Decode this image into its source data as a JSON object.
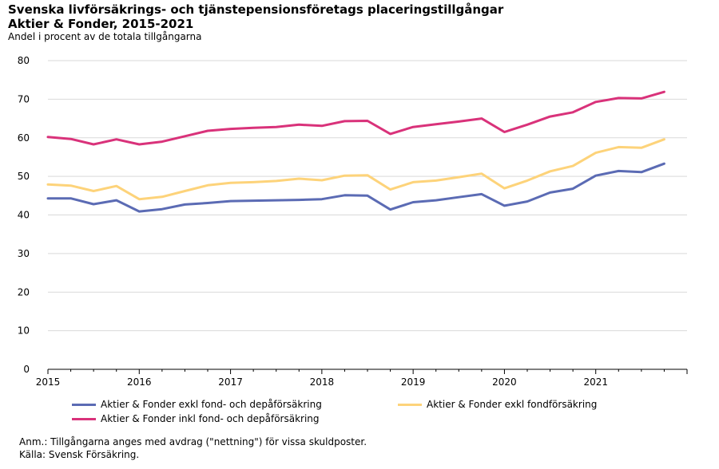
{
  "title_line1": "Svenska livförsäkrings- och tjänstepensionsföretags placeringstillgångar",
  "title_line2": "Aktier & Fonder, 2015-2021",
  "subtitle": "Andel i procent av de totala tillgångarna",
  "notes": {
    "anm": "Anm.: Tillgångarna anges med avdrag (\"nettning\") för vissa skuldposter.",
    "source": "Källa: Svensk Försäkring."
  },
  "chart_data": {
    "type": "line",
    "title": "",
    "xlabel": "",
    "ylabel": "",
    "ylim": [
      0,
      80
    ],
    "yticks": [
      0,
      10,
      20,
      30,
      40,
      50,
      60,
      70,
      80
    ],
    "xlim": [
      2015.0,
      2022.0
    ],
    "xticks": [
      "2015",
      "2016",
      "2017",
      "2018",
      "2019",
      "2020",
      "2021"
    ],
    "grid": true,
    "legend_position": "bottom",
    "x": [
      2015.0,
      2015.25,
      2015.5,
      2015.75,
      2016.0,
      2016.25,
      2016.5,
      2016.75,
      2017.0,
      2017.25,
      2017.5,
      2017.75,
      2018.0,
      2018.25,
      2018.5,
      2018.75,
      2019.0,
      2019.25,
      2019.5,
      2019.75,
      2020.0,
      2020.25,
      2020.5,
      2020.75,
      2021.0,
      2021.25,
      2021.5,
      2021.75
    ],
    "series": [
      {
        "name": "Aktier & Fonder exkl fond- och depåförsäkring",
        "color": "#5b6bb4",
        "values": [
          44.3,
          44.3,
          42.8,
          43.8,
          40.9,
          41.5,
          42.7,
          43.1,
          43.6,
          43.7,
          43.8,
          43.9,
          44.1,
          45.1,
          45.0,
          41.4,
          43.3,
          43.8,
          44.6,
          45.4,
          42.4,
          43.5,
          45.8,
          46.8,
          50.2,
          51.4,
          51.1,
          53.3
        ]
      },
      {
        "name": "Aktier & Fonder exkl fondförsäkring",
        "color": "#fdd37a",
        "values": [
          47.9,
          47.6,
          46.2,
          47.5,
          44.1,
          44.7,
          46.2,
          47.7,
          48.3,
          48.5,
          48.8,
          49.4,
          49.0,
          50.2,
          50.3,
          46.6,
          48.5,
          48.9,
          49.8,
          50.7,
          46.9,
          48.9,
          51.3,
          52.7,
          56.1,
          57.6,
          57.4,
          59.6
        ]
      },
      {
        "name": "Aktier & Fonder inkl fond- och depåförsäkring",
        "color": "#d9327a",
        "values": [
          60.2,
          59.7,
          58.3,
          59.6,
          58.3,
          59.0,
          60.4,
          61.8,
          62.3,
          62.6,
          62.8,
          63.4,
          63.1,
          64.3,
          64.4,
          61.0,
          62.8,
          63.5,
          64.2,
          65.0,
          61.5,
          63.4,
          65.5,
          66.6,
          69.3,
          70.3,
          70.2,
          71.9
        ]
      }
    ]
  }
}
